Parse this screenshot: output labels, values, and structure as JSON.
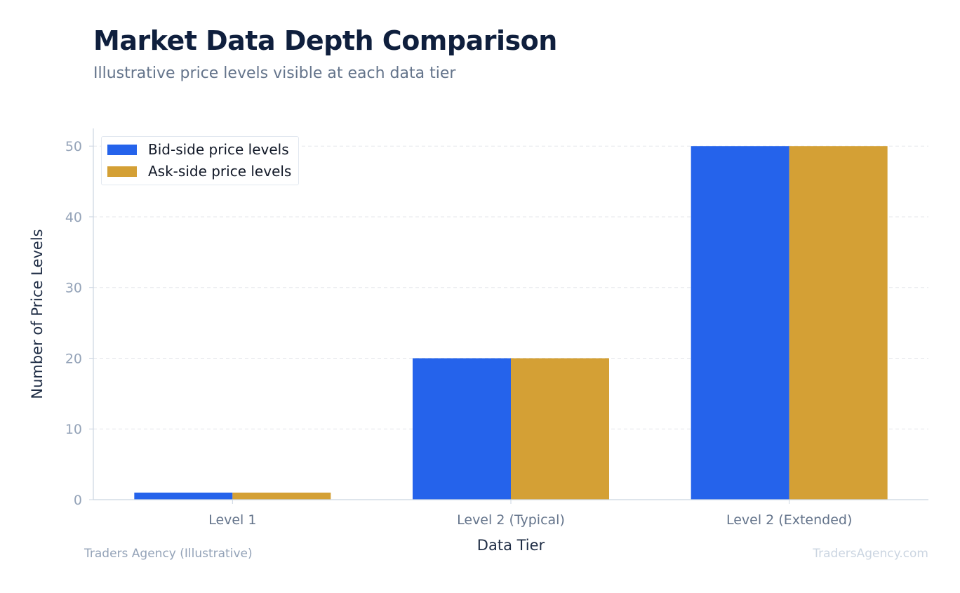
{
  "header": {
    "title": "Market Data Depth Comparison",
    "subtitle": "Illustrative price levels visible at each data tier"
  },
  "footer": {
    "left": "Traders Agency (Illustrative)",
    "right": "TradersAgency.com"
  },
  "colors": {
    "bid": "#2563eb",
    "ask": "#d4a035",
    "grid": "#e5e7eb",
    "axis": "#cbd5e1",
    "tick_text": "#94a3b8",
    "label_text": "#1f2d45"
  },
  "chart_data": {
    "type": "bar",
    "categories": [
      "Level 1",
      "Level 2 (Typical)",
      "Level 2 (Extended)"
    ],
    "series": [
      {
        "name": "Bid-side price levels",
        "values": [
          1,
          20,
          50
        ]
      },
      {
        "name": "Ask-side price levels",
        "values": [
          1,
          20,
          50
        ]
      }
    ],
    "xlabel": "Data Tier",
    "ylabel": "Number of Price Levels",
    "ylim": [
      0,
      52.5
    ],
    "yticks": [
      0,
      10,
      20,
      30,
      40,
      50
    ],
    "grid": true,
    "legend_position": "top-left"
  }
}
